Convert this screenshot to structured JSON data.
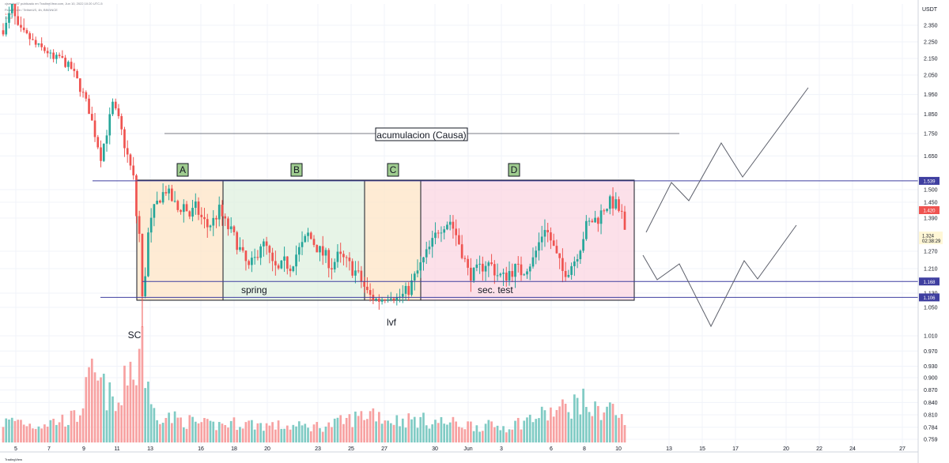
{
  "header": {
    "line1": "cjsmcirc07 publicado en TradingView.com, Jun 10, 2022 10:20 UTC-5",
    "line2": "Flow Token / TetherUS, 4h, BINANCE",
    "line3": "1.561",
    "line4": "1.561"
  },
  "footer": {
    "brand": "TradingView"
  },
  "colors": {
    "up": "#26a69a",
    "down": "#ef5350",
    "upVol": "#80cbc4",
    "downVol": "#f7a1a1",
    "levelLine": "#3f3fa0",
    "zoneA": "#fde4c6",
    "zoneB": "#dff0df",
    "zoneC": "#fde4c6",
    "zoneD": "#fbd6e1",
    "badge": "#9fcc8f"
  },
  "chart_data": {
    "type": "candlestick",
    "quote_unit": "USDT",
    "ylim": [
      0.75,
      2.42
    ],
    "price_ticks": [
      "2.350",
      "2.250",
      "2.150",
      "2.050",
      "1.950",
      "1.850",
      "1.750",
      "1.650",
      "1.500",
      "1.450",
      "1.390",
      "1.270",
      "1.210",
      "1.130",
      "1.050",
      "1.010",
      "0.970",
      "0.930",
      "0.900",
      "0.870",
      "0.840",
      "0.810",
      "0.784",
      "0.759"
    ],
    "date_ticks": [
      "5",
      "7",
      "9",
      "11",
      "13",
      "16",
      "18",
      "20",
      "23",
      "25",
      "27",
      "30",
      "Jun",
      "3",
      "6",
      "8",
      "10",
      "13",
      "15",
      "17",
      "20",
      "22",
      "24",
      "27"
    ],
    "key_levels": [
      {
        "label": "1.539",
        "value": 1.539
      },
      {
        "label": "1.168",
        "value": 1.168
      },
      {
        "label": "1.106",
        "value": 1.106
      }
    ],
    "last_price": {
      "label": "1.420",
      "value": 1.42
    },
    "current_price": {
      "label": "1.324",
      "value": 1.324,
      "countdown": "02:38:29"
    },
    "annotations": {
      "title": "acumulacion (Causa)",
      "sc": "SC",
      "spring": "spring",
      "lvf": "lvf",
      "sec_test": "sec. test"
    },
    "phases": [
      {
        "label": "A",
        "from": 0.0,
        "to": 0.175
      },
      {
        "label": "B",
        "from": 0.175,
        "to": 0.5
      },
      {
        "label": "C",
        "from": 0.5,
        "to": 0.62
      },
      {
        "label": "D",
        "from": 0.62,
        "to": 1.0
      }
    ],
    "price_anchors": [
      [
        0,
        2.32
      ],
      [
        1.5,
        2.36
      ],
      [
        3,
        2.41
      ],
      [
        5,
        2.33
      ],
      [
        7,
        2.3
      ],
      [
        9,
        2.27
      ],
      [
        11,
        2.23
      ],
      [
        13,
        2.21
      ],
      [
        15,
        2.19
      ],
      [
        17,
        2.14
      ],
      [
        19,
        2.16
      ],
      [
        21,
        2.12
      ],
      [
        23,
        2.09
      ],
      [
        25,
        2.02
      ],
      [
        27,
        1.95
      ],
      [
        29,
        1.87
      ],
      [
        31,
        1.75
      ],
      [
        33,
        1.65
      ],
      [
        35,
        1.76
      ],
      [
        37,
        1.9
      ],
      [
        39,
        1.82
      ],
      [
        41,
        1.7
      ],
      [
        43,
        1.6
      ],
      [
        44,
        1.55
      ],
      [
        45,
        1.4
      ],
      [
        46,
        1.33
      ],
      [
        47,
        1.1
      ],
      [
        48,
        1.2
      ],
      [
        49,
        1.33
      ],
      [
        51,
        1.42
      ],
      [
        53,
        1.47
      ],
      [
        55,
        1.5
      ],
      [
        57,
        1.46
      ],
      [
        59,
        1.42
      ],
      [
        61,
        1.44
      ],
      [
        63,
        1.4
      ],
      [
        65,
        1.43
      ],
      [
        67,
        1.39
      ],
      [
        69,
        1.36
      ],
      [
        71,
        1.38
      ],
      [
        73,
        1.42
      ],
      [
        75,
        1.37
      ],
      [
        77,
        1.34
      ],
      [
        79,
        1.3
      ],
      [
        81,
        1.25
      ],
      [
        83,
        1.21
      ],
      [
        85,
        1.24
      ],
      [
        87,
        1.3
      ],
      [
        89,
        1.28
      ],
      [
        91,
        1.22
      ],
      [
        93,
        1.2
      ],
      [
        95,
        1.23
      ],
      [
        97,
        1.22
      ],
      [
        99,
        1.26
      ],
      [
        101,
        1.29
      ],
      [
        103,
        1.33
      ],
      [
        105,
        1.3
      ],
      [
        107,
        1.27
      ],
      [
        109,
        1.25
      ],
      [
        111,
        1.22
      ],
      [
        113,
        1.25
      ],
      [
        115,
        1.24
      ],
      [
        117,
        1.22
      ],
      [
        119,
        1.2
      ],
      [
        121,
        1.17
      ],
      [
        123,
        1.13
      ],
      [
        125,
        1.1
      ],
      [
        127,
        1.09
      ],
      [
        129,
        1.11
      ],
      [
        131,
        1.12
      ],
      [
        133,
        1.1
      ],
      [
        135,
        1.12
      ],
      [
        137,
        1.14
      ],
      [
        139,
        1.18
      ],
      [
        141,
        1.22
      ],
      [
        143,
        1.26
      ],
      [
        145,
        1.3
      ],
      [
        147,
        1.35
      ],
      [
        149,
        1.37
      ],
      [
        151,
        1.38
      ],
      [
        153,
        1.33
      ],
      [
        155,
        1.27
      ],
      [
        157,
        1.2
      ],
      [
        159,
        1.19
      ],
      [
        161,
        1.21
      ],
      [
        163,
        1.23
      ],
      [
        165,
        1.22
      ],
      [
        167,
        1.19
      ],
      [
        169,
        1.18
      ],
      [
        171,
        1.2
      ],
      [
        173,
        1.21
      ],
      [
        175,
        1.2
      ],
      [
        177,
        1.22
      ],
      [
        179,
        1.24
      ],
      [
        181,
        1.3
      ],
      [
        183,
        1.36
      ],
      [
        185,
        1.31
      ],
      [
        187,
        1.25
      ],
      [
        189,
        1.2
      ],
      [
        191,
        1.21
      ],
      [
        193,
        1.24
      ],
      [
        195,
        1.29
      ],
      [
        197,
        1.36
      ],
      [
        199,
        1.38
      ],
      [
        201,
        1.39
      ],
      [
        203,
        1.43
      ],
      [
        205,
        1.45
      ],
      [
        207,
        1.44
      ],
      [
        209,
        1.4
      ],
      [
        210,
        1.33
      ]
    ],
    "volume_anchors": [
      [
        0,
        0.35
      ],
      [
        5,
        0.4
      ],
      [
        10,
        0.3
      ],
      [
        15,
        0.35
      ],
      [
        20,
        0.4
      ],
      [
        25,
        0.45
      ],
      [
        28,
        0.9
      ],
      [
        30,
        1.15
      ],
      [
        33,
        1.0
      ],
      [
        36,
        0.8
      ],
      [
        38,
        0.6
      ],
      [
        40,
        0.7
      ],
      [
        42,
        1.3
      ],
      [
        44,
        1.45
      ],
      [
        45,
        1.0
      ],
      [
        46,
        1.85
      ],
      [
        47,
        2.0
      ],
      [
        48,
        1.2
      ],
      [
        50,
        0.6
      ],
      [
        55,
        0.45
      ],
      [
        60,
        0.4
      ],
      [
        70,
        0.3
      ],
      [
        80,
        0.35
      ],
      [
        90,
        0.3
      ],
      [
        100,
        0.28
      ],
      [
        110,
        0.3
      ],
      [
        120,
        0.45
      ],
      [
        125,
        0.55
      ],
      [
        130,
        0.4
      ],
      [
        140,
        0.4
      ],
      [
        150,
        0.35
      ],
      [
        160,
        0.3
      ],
      [
        170,
        0.28
      ],
      [
        180,
        0.45
      ],
      [
        190,
        0.6
      ],
      [
        195,
        0.75
      ],
      [
        200,
        0.55
      ],
      [
        205,
        0.65
      ],
      [
        210,
        0.35
      ]
    ]
  }
}
